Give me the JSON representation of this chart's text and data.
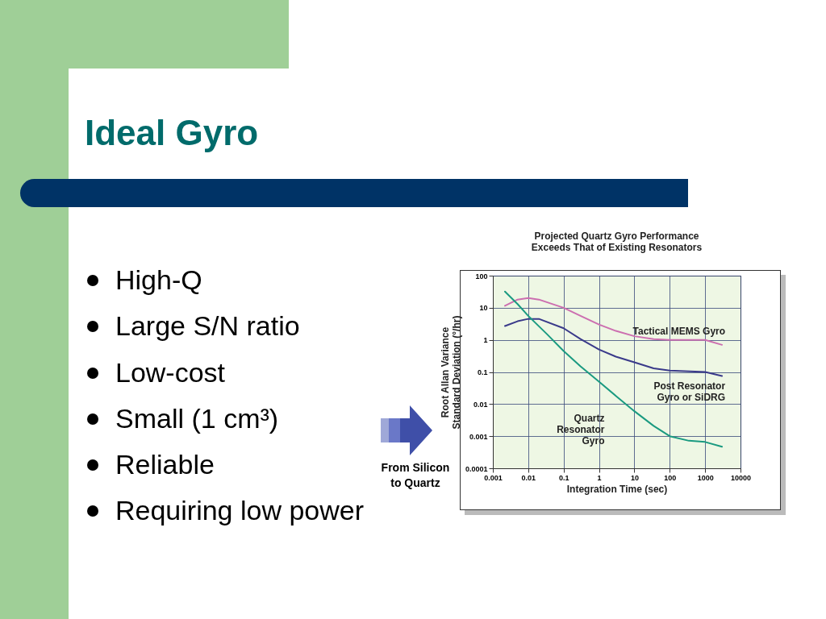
{
  "chart_data": {
    "type": "line",
    "title": "Projected Quartz Gyro Performance\nExceeds That of Existing Resonators",
    "xlabel": "Integration Time (sec)",
    "ylabel": "Root Allan Variance\nStandard Deviation (°/hr)",
    "log": "xy",
    "grid": true,
    "line_style": "solid",
    "xlim": [
      0.001,
      10000
    ],
    "xticks": [
      0.001,
      0.01,
      0.1,
      1,
      10,
      100,
      1000,
      10000
    ],
    "ylim": [
      0.0001,
      100
    ],
    "yticks": [
      0.0001,
      0.001,
      0.01,
      0.1,
      1,
      10,
      100
    ],
    "series": [
      {
        "name": "Tactical MEMS Gyro",
        "color": "#cc6fb0",
        "x": [
          0.0022,
          0.005,
          0.01,
          0.02,
          0.1,
          0.3,
          1,
          3,
          10,
          35,
          100,
          1000,
          3000
        ],
        "values": [
          11.5,
          18,
          20,
          18,
          10,
          5.6,
          3,
          1.9,
          1.3,
          1.05,
          1,
          1,
          0.7
        ]
      },
      {
        "name": "Post Resonator\nGyro or SiDRG",
        "color": "#3a3a8a",
        "x": [
          0.0022,
          0.005,
          0.01,
          0.02,
          0.1,
          0.3,
          1,
          3,
          10,
          35,
          100,
          1000,
          3000
        ],
        "values": [
          2.7,
          3.8,
          4.5,
          4.5,
          2.3,
          1.06,
          0.5,
          0.3,
          0.2,
          0.13,
          0.11,
          0.1,
          0.075
        ]
      },
      {
        "name": "Quartz\nResonator\nGyro",
        "color": "#1a9a80",
        "x": [
          0.0022,
          0.005,
          0.01,
          0.034,
          0.1,
          0.3,
          1,
          3,
          10,
          35,
          100,
          350,
          1000,
          3000
        ],
        "values": [
          32,
          13,
          5.6,
          1.5,
          0.45,
          0.15,
          0.05,
          0.018,
          0.006,
          0.0021,
          0.001,
          0.00072,
          0.00066,
          0.00047
        ]
      }
    ],
    "annotations": [
      "Ideal Gyro",
      "High-Q",
      "Large S/N ratio",
      "Low-cost",
      "Small (1 cm³)",
      "Reliable",
      "Requiring low power",
      "From Silicon\nto Quartz"
    ]
  }
}
